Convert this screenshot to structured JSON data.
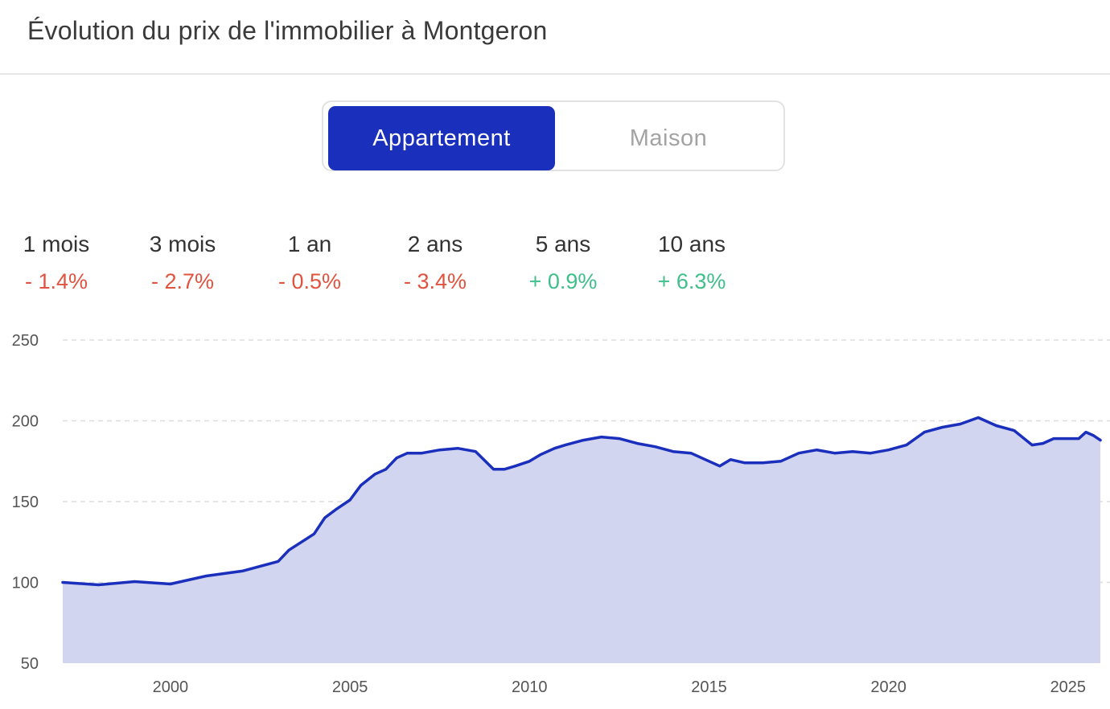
{
  "header": {
    "title": "Évolution du prix de l'immobilier à Montgeron"
  },
  "toggle": {
    "active_label": "Appartement",
    "inactive_label": "Maison"
  },
  "stats": [
    {
      "label": "1 mois",
      "value": "- 1.4%"
    },
    {
      "label": "3 mois",
      "value": "- 2.7%"
    },
    {
      "label": "1 an",
      "value": "- 0.5%"
    },
    {
      "label": "2 ans",
      "value": "- 3.4%"
    },
    {
      "label": "5 ans",
      "value": "+ 0.9%"
    },
    {
      "label": "10 ans",
      "value": "+ 6.3%"
    }
  ],
  "colors": {
    "accent": "#1b2fbd",
    "fill": "#d1d5f0",
    "negative": "#e0533f",
    "positive": "#3fbf8a",
    "grid": "#dddddd"
  },
  "chart_data": {
    "type": "area",
    "xlabel": "",
    "ylabel": "",
    "xlim": [
      1997.0,
      2025.9
    ],
    "ylim": [
      50,
      250
    ],
    "yticks": [
      50,
      100,
      150,
      200,
      250
    ],
    "xticks": [
      2000,
      2005,
      2010,
      2015,
      2020,
      2025
    ],
    "grid": true,
    "series": [
      {
        "x": [
          1997.0,
          1998.0,
          1999.0,
          2000.0,
          2001.0,
          2002.0,
          2003.0,
          2003.3,
          2004.0,
          2004.3,
          2004.6,
          2005.0,
          2005.3,
          2005.7,
          2006.0,
          2006.3,
          2006.6,
          2007.0,
          2007.5,
          2008.0,
          2008.5,
          2009.0,
          2009.3,
          2009.6,
          2010.0,
          2010.3,
          2010.7,
          2011.0,
          2011.5,
          2012.0,
          2012.5,
          2013.0,
          2013.5,
          2014.0,
          2014.5,
          2015.0,
          2015.3,
          2015.6,
          2016.0,
          2016.5,
          2017.0,
          2017.5,
          2018.0,
          2018.5,
          2019.0,
          2019.5,
          2020.0,
          2020.5,
          2021.0,
          2021.5,
          2022.0,
          2022.5,
          2023.0,
          2023.5,
          2024.0,
          2024.3,
          2024.6,
          2025.0,
          2025.3,
          2025.5,
          2025.7,
          2025.9
        ],
        "y": [
          100,
          98.5,
          100.5,
          99,
          104,
          107,
          113,
          120,
          130,
          140,
          145,
          151,
          160,
          167,
          170,
          177,
          180,
          180,
          182,
          183,
          181,
          170,
          170,
          172,
          175,
          179,
          183,
          185,
          188,
          190,
          189,
          186,
          184,
          181,
          180,
          175,
          172,
          176,
          174,
          174,
          175,
          180,
          182,
          180,
          181,
          180,
          182,
          185,
          193,
          196,
          198,
          202,
          197,
          194,
          185,
          186,
          189,
          189,
          189,
          193,
          191,
          188
        ]
      }
    ]
  }
}
